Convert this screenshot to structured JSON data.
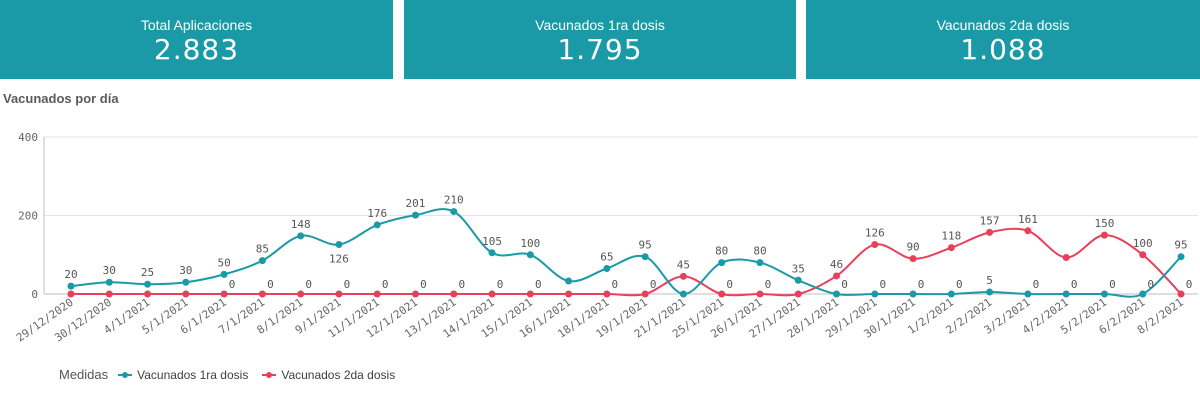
{
  "kpis": [
    {
      "title": "Total Aplicaciones",
      "value": "2.883"
    },
    {
      "title": "Vacunados 1ra dosis",
      "value": "1.795"
    },
    {
      "title": "Vacunados 2da dosis",
      "value": "1.088"
    }
  ],
  "colors": {
    "kpi_background": "#1a9aa6",
    "series1": "#1a9aa6",
    "series2": "#e8405a"
  },
  "chart_data": {
    "type": "line",
    "title": "Vacunados por día",
    "categories": [
      "29/12/2020",
      "30/12/2020",
      "4/1/2021",
      "5/1/2021",
      "6/1/2021",
      "7/1/2021",
      "8/1/2021",
      "9/1/2021",
      "11/1/2021",
      "12/1/2021",
      "13/1/2021",
      "14/1/2021",
      "15/1/2021",
      "16/1/2021",
      "18/1/2021",
      "19/1/2021",
      "21/1/2021",
      "25/1/2021",
      "26/1/2021",
      "27/1/2021",
      "28/1/2021",
      "29/1/2021",
      "30/1/2021",
      "1/2/2021",
      "2/2/2021",
      "3/2/2021",
      "4/2/2021",
      "5/2/2021",
      "6/2/2021",
      "8/2/2021"
    ],
    "yticks": [
      0,
      200,
      400
    ],
    "ylim": [
      0,
      400
    ],
    "grid": true,
    "legend_position": "bottom-left",
    "legend_title": "Medidas",
    "series": [
      {
        "name": "Vacunados 1ra dosis",
        "values": [
          20,
          30,
          25,
          30,
          50,
          85,
          148,
          126,
          176,
          201,
          210,
          105,
          100,
          33,
          65,
          95,
          0,
          80,
          80,
          35,
          0,
          0,
          0,
          0,
          5,
          0,
          0,
          0,
          0,
          95
        ],
        "labels": [
          "20",
          "30",
          "25",
          "30",
          "50",
          "85",
          "148",
          "126",
          "176",
          "201",
          "210",
          "105",
          "100",
          "",
          "65",
          "95",
          "",
          "80",
          "80",
          "35",
          "",
          "",
          "",
          "",
          "5",
          "",
          "",
          "",
          "",
          "95"
        ]
      },
      {
        "name": "Vacunados 2da dosis",
        "values": [
          0,
          0,
          0,
          0,
          0,
          0,
          0,
          0,
          0,
          0,
          0,
          0,
          0,
          0,
          0,
          0,
          45,
          0,
          0,
          0,
          46,
          126,
          90,
          118,
          157,
          161,
          93,
          150,
          100,
          0
        ],
        "labels": [
          "",
          "",
          "",
          "",
          "0",
          "0",
          "0",
          "0",
          "0",
          "0",
          "0",
          "0",
          "0",
          "",
          "0",
          "0",
          "45",
          "0",
          "0",
          "",
          "46",
          "126",
          "90",
          "118",
          "157",
          "161",
          "",
          "150",
          "100",
          "0"
        ]
      }
    ],
    "zero_labels_series1": [
      "",
      "",
      "",
      "",
      "",
      "",
      "",
      "",
      "",
      "",
      "",
      "",
      "",
      "",
      "",
      "",
      "",
      "",
      "",
      "",
      "0",
      "0",
      "0",
      "0",
      "",
      "0",
      "0",
      "0",
      "0",
      ""
    ]
  }
}
